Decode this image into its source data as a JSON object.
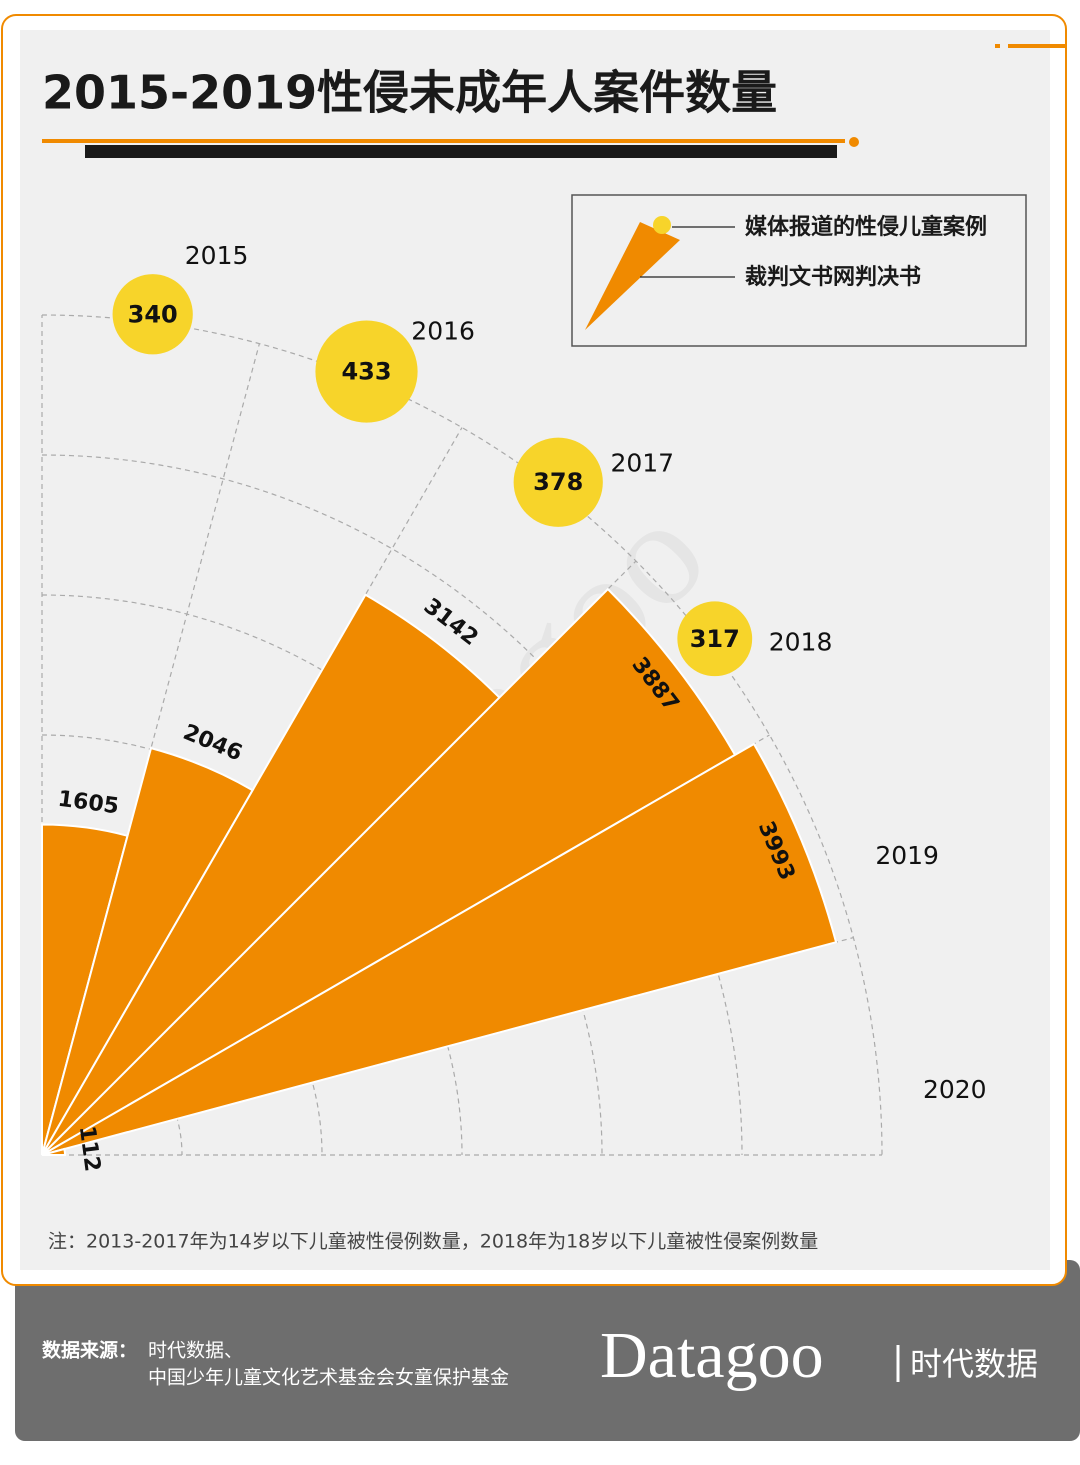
{
  "chart_data": {
    "type": "polar-bar",
    "title": "2015-2019性侵未成年人案件数量",
    "categories": [
      "2015",
      "2016",
      "2017",
      "2018",
      "2019",
      "2020"
    ],
    "series": [
      {
        "name": "媒体报道的性侵儿童案例",
        "color": "#f7d42a",
        "values": [
          340,
          433,
          378,
          317,
          null,
          null
        ]
      },
      {
        "name": "裁判文书网判决书",
        "color": "#f08a00",
        "values": [
          1605,
          2046,
          3142,
          3887,
          3993,
          112
        ]
      }
    ],
    "rlim": [
      0,
      4080
    ],
    "note": "注：2013-2017年为14岁以下儿童被性侵例数量，2018年为18岁以下儿童被性侵案例数量",
    "source_label": "数据来源：",
    "source_lines": [
      "时代数据、",
      "中国少年儿童文化艺术基金会女童保护基金"
    ],
    "brand": "Datagoo",
    "brand_cn": "时代数据"
  }
}
